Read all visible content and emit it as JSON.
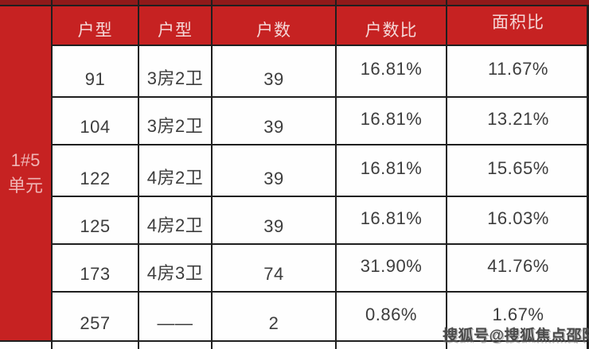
{
  "chart_data": {
    "type": "table",
    "unit_label": "1#5单元",
    "columns": [
      "户型",
      "户型",
      "户数",
      "户数比",
      "面积比"
    ],
    "rows": [
      [
        "91",
        "3房2卫",
        "39",
        "16.81%",
        "11.67%"
      ],
      [
        "104",
        "3房2卫",
        "39",
        "16.81%",
        "13.21%"
      ],
      [
        "122",
        "4房2卫",
        "39",
        "16.81%",
        "15.65%"
      ],
      [
        "125",
        "4房2卫",
        "39",
        "16.81%",
        "16.03%"
      ],
      [
        "173",
        "4房3卫",
        "74",
        "31.90%",
        "41.76%"
      ],
      [
        "257",
        "——",
        "2",
        "0.86%",
        "1.67%"
      ]
    ]
  },
  "watermark": {
    "text": "搜狐号@搜狐焦点邵阳站"
  },
  "colors": {
    "header_red": "#c62222",
    "bar_red": "#8f1a1a",
    "border": "#1f1f1f",
    "cell_bg": "#fefefe",
    "cell_text": "#3d3d3d",
    "header_text": "#f5d7d7",
    "unit_text": "#efb5b5",
    "watermark": "#4a4a4a"
  }
}
